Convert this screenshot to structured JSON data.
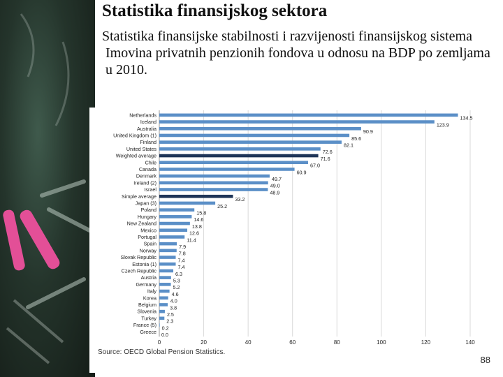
{
  "slide": {
    "title": "Statistika finansijskog sektora",
    "subtitle_line1": "Statistika finansijske stabilnosti i razvijenosti finansijskog sistema",
    "subtitle_line2": "Imovina privatnih penzionih fondova u odnosu na BDP po zemljama u 2010.",
    "page_number": "88"
  },
  "chart_data": {
    "type": "bar",
    "orientation": "horizontal",
    "title": "",
    "source": "Source: OECD Global Pension Statistics.",
    "categories": [
      "Netherlands",
      "Iceland",
      "Australia",
      "United Kingdom (1)",
      "Finland",
      "United States",
      "Weighted average",
      "Chile",
      "Canada",
      "Denmark",
      "Ireland (2)",
      "Israel",
      "Simple average",
      "Japan (3)",
      "Poland",
      "Hungary",
      "New Zealand",
      "Mexico",
      "Portugal",
      "Spain",
      "Norway",
      "Slovak Republic",
      "Estonia (1)",
      "Czech Republic",
      "Austria",
      "Germany",
      "Italy",
      "Korea",
      "Belgium",
      "Slovenia",
      "Turkey",
      "France (5)",
      "Greece"
    ],
    "values": [
      134.5,
      123.9,
      90.9,
      85.6,
      82.1,
      72.6,
      71.6,
      67.0,
      60.9,
      49.7,
      49.0,
      48.9,
      33.2,
      25.2,
      15.8,
      14.6,
      13.8,
      12.6,
      11.4,
      7.9,
      7.8,
      7.4,
      7.4,
      6.3,
      5.3,
      5.2,
      4.6,
      4.0,
      3.8,
      2.5,
      2.3,
      0.2,
      0.0
    ],
    "value_labels": [
      "134.5",
      "123.9",
      "90.9",
      "85.6",
      "82.1",
      "72.6",
      "71.6",
      "67.0",
      "60.9",
      "49.7",
      "49.0",
      "48.9",
      "33.2",
      "25.2",
      "15.8",
      "14.6",
      "13.8",
      "12.6",
      "11.4",
      "7.9",
      "7.8",
      "7.4",
      "7.4",
      "6.3",
      "5.3",
      "5.2",
      "4.6",
      "4.0",
      "3.8",
      "2.5",
      "2.3",
      "0.2",
      "0.0"
    ],
    "highlighted": [
      "Weighted average",
      "Simple average"
    ],
    "xlim": [
      0,
      140
    ],
    "xticks": [
      0,
      20,
      40,
      60,
      80,
      100,
      120,
      140
    ],
    "grid": true,
    "colors": {
      "bar": "#5b8fc7",
      "highlight": "#1f3558",
      "grid": "#d9d9d9",
      "text": "#222222"
    }
  }
}
